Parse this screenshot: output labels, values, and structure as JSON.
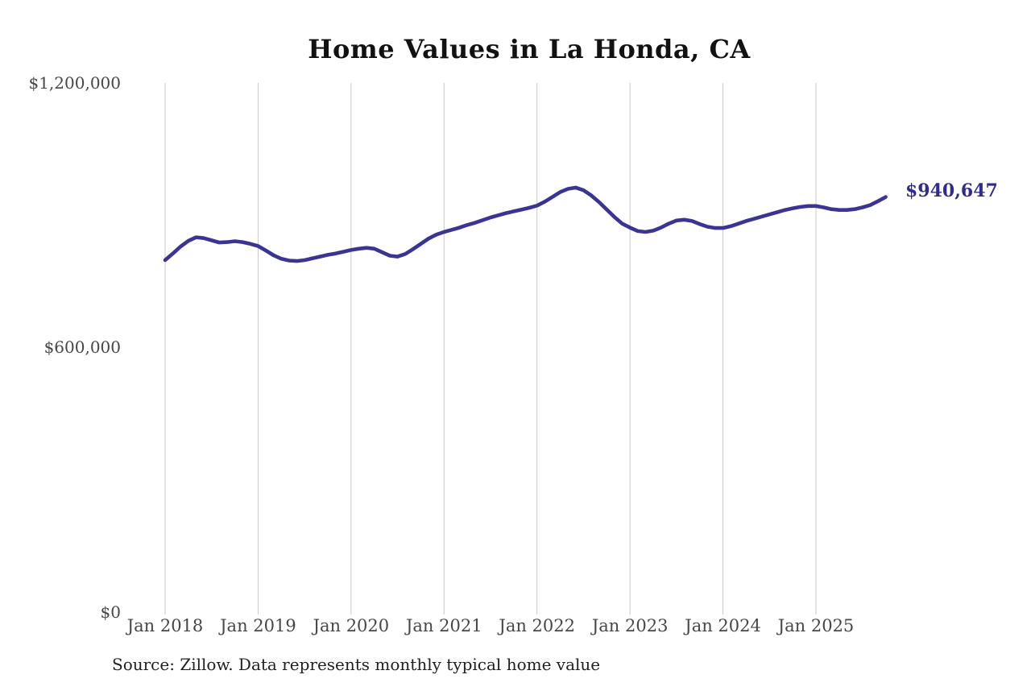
{
  "page": {
    "background": "#ffffff"
  },
  "chart": {
    "title": "Home Values in La Honda, CA",
    "end_label": "$940,647",
    "source_note": "Source: Zillow. Data represents monthly typical home value",
    "colors": {
      "line": "#3a3494",
      "end_label": "#312b8d",
      "gridline": "#c9c9c9",
      "axis_label": "#474747",
      "title": "#121212",
      "source": "#1f1f1f"
    }
  },
  "chart_data": {
    "type": "line",
    "title": "Home Values in La Honda, CA",
    "series_label": "$940,647",
    "frequency": "monthly",
    "start_month": "2018-01",
    "end_month": "2025-10",
    "ylim": [
      0,
      1200000
    ],
    "y_tick_labels": [
      "$1,200,000",
      "$600,000",
      "$0"
    ],
    "y_tick_values": [
      1200000,
      600000,
      0
    ],
    "x_tick_labels": [
      "Jan 2018",
      "Jan 2019",
      "Jan 2020",
      "Jan 2021",
      "Jan 2022",
      "Jan 2023",
      "Jan 2024",
      "Jan 2025"
    ],
    "grid": "vertical",
    "legend": "none",
    "annotation": {
      "text": "$940,647",
      "attached_to": "last-point"
    },
    "last_value": 940647,
    "values": [
      797000,
      812000,
      828000,
      841000,
      849000,
      847000,
      842000,
      837000,
      838000,
      840000,
      838000,
      834000,
      829000,
      819000,
      808000,
      800000,
      796000,
      795000,
      797000,
      801000,
      805000,
      809000,
      812000,
      816000,
      820000,
      823000,
      825000,
      823000,
      815000,
      807000,
      805000,
      811000,
      822000,
      834000,
      846000,
      855000,
      861000,
      866000,
      871000,
      877000,
      882000,
      888000,
      894000,
      899000,
      904000,
      908000,
      912000,
      916000,
      921000,
      930000,
      941000,
      952000,
      959000,
      962000,
      956000,
      944000,
      929000,
      912000,
      895000,
      880000,
      871000,
      863000,
      861000,
      864000,
      871000,
      880000,
      887000,
      889000,
      886000,
      879000,
      873000,
      870000,
      870000,
      874000,
      880000,
      886000,
      891000,
      896000,
      901000,
      906000,
      911000,
      915000,
      918000,
      920000,
      920000,
      917000,
      913000,
      911000,
      911000,
      913000,
      917000,
      922000,
      931000,
      940647
    ]
  }
}
